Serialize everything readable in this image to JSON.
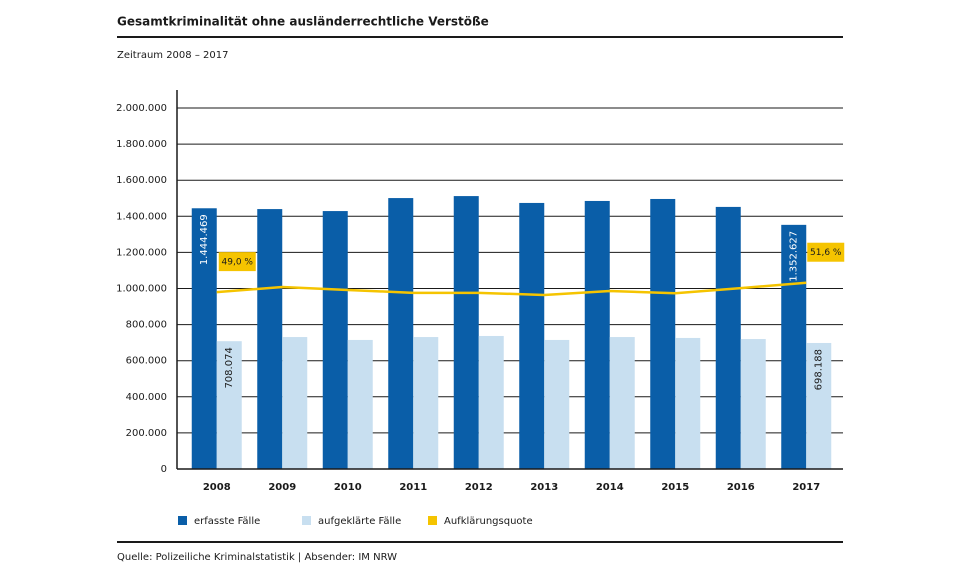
{
  "chart_data": {
    "type": "bar-line",
    "title": "Gesamtkriminalität ohne ausländerrechtliche Verstöße",
    "subtitle": "Zeitraum 2008 – 2017",
    "source": "Quelle: Polizeiliche Kriminalstatistik  |  Absender: IM NRW",
    "categories": [
      "2008",
      "2009",
      "2010",
      "2011",
      "2012",
      "2013",
      "2014",
      "2015",
      "2016",
      "2017"
    ],
    "series": [
      {
        "name": "erfasste Fälle",
        "color": "#0a5ea8",
        "type": "bar",
        "values": [
          1444469,
          1440000,
          1429000,
          1501000,
          1512000,
          1474000,
          1485000,
          1496000,
          1452000,
          1352627
        ],
        "value_labels": [
          "1.444.469",
          null,
          null,
          null,
          null,
          null,
          null,
          null,
          null,
          "1.352.627"
        ]
      },
      {
        "name": "aufgeklärte Fälle",
        "color": "#c8dff0",
        "type": "bar",
        "values": [
          708074,
          731000,
          715000,
          731000,
          737000,
          715000,
          731000,
          726000,
          720000,
          698188
        ],
        "value_labels": [
          "708.074",
          null,
          null,
          null,
          null,
          null,
          null,
          null,
          null,
          "698.188"
        ]
      },
      {
        "name": "Aufklärungsquote",
        "color": "#f5c400",
        "type": "line",
        "axis": "y2",
        "values": [
          49.0,
          50.4,
          49.6,
          48.8,
          48.8,
          48.2,
          49.3,
          48.7,
          50.1,
          51.6
        ],
        "value_labels": [
          "49,0 %",
          null,
          null,
          null,
          null,
          null,
          null,
          null,
          null,
          "51,6 %"
        ]
      }
    ],
    "ylim": [
      0,
      2000000
    ],
    "yticks": [
      0,
      {
        "value": 200000,
        "label": "200.000"
      },
      {
        "value": 400000,
        "label": "400.000"
      },
      {
        "value": 600000,
        "label": "600.000"
      },
      {
        "value": 800000,
        "label": "800.000"
      },
      {
        "value": 1000000,
        "label": "1.000.000"
      },
      {
        "value": 1200000,
        "label": "1.200.000"
      },
      {
        "value": 1400000,
        "label": "1.400.000"
      },
      {
        "value": 1600000,
        "label": "1.600.000"
      },
      {
        "value": 1800000,
        "label": "1.800.000"
      },
      {
        "value": 2000000,
        "label": "2.000.000"
      }
    ],
    "y2lim": [
      0,
      100
    ],
    "grid": true
  }
}
